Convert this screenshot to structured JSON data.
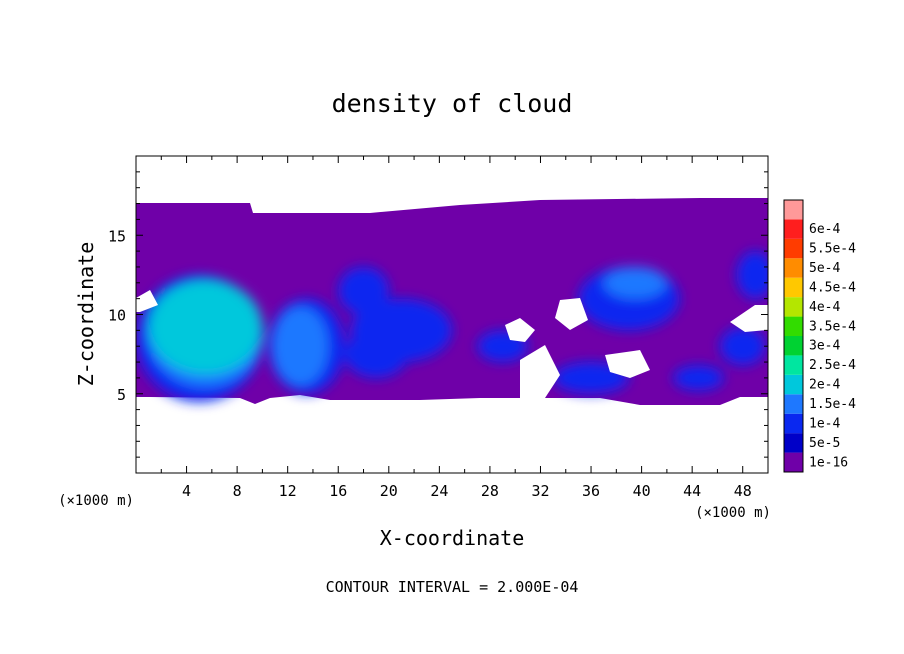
{
  "chart_data": {
    "type": "heatmap",
    "title": "density of cloud",
    "xlabel": "X-coordinate",
    "ylabel": "Z-coordinate",
    "x_unit": "(×1000 m)",
    "xlim": [
      0,
      50
    ],
    "ylim": [
      0,
      20
    ],
    "x_ticks": [
      "4",
      "8",
      "12",
      "16",
      "20",
      "24",
      "28",
      "32",
      "36",
      "40",
      "44",
      "48"
    ],
    "y_ticks": [
      "5",
      "10",
      "15"
    ],
    "colorbar": {
      "levels": [
        "1e-16",
        "5e-5",
        "1e-4",
        "1.5e-4",
        "2e-4",
        "2.5e-4",
        "3e-4",
        "3.5e-4",
        "4e-4",
        "4.5e-4",
        "5e-4",
        "5.5e-4",
        "6e-4"
      ],
      "colors": [
        "#6f00a8",
        "#0000c8",
        "#0a28f0",
        "#1e78ff",
        "#00c8dc",
        "#00e6a0",
        "#00d232",
        "#32dc00",
        "#b4e600",
        "#ffc800",
        "#ff8c00",
        "#ff3c00",
        "#ff1e1e",
        "#ff9999"
      ]
    },
    "background_field": {
      "x_range": [
        0,
        50
      ],
      "z_range": [
        5,
        17
      ],
      "level": "1e-16"
    },
    "cells": [
      {
        "x": 5.5,
        "z": 9.2,
        "rx": 4.5,
        "rz": 3.0,
        "level": 4
      },
      {
        "x": 5.5,
        "z": 8.8,
        "rx": 4.6,
        "rz": 3.4,
        "level": 3
      },
      {
        "x": 5.0,
        "z": 8.5,
        "rx": 5.0,
        "rz": 4.0,
        "level": 2
      },
      {
        "x": 13.0,
        "z": 8.0,
        "rx": 2.2,
        "rz": 2.5,
        "level": 3
      },
      {
        "x": 13.5,
        "z": 8.0,
        "rx": 3.0,
        "rz": 3.0,
        "level": 2
      },
      {
        "x": 18.0,
        "z": 11.5,
        "rx": 2.0,
        "rz": 1.5,
        "level": 2
      },
      {
        "x": 21.0,
        "z": 9.0,
        "rx": 4.0,
        "rz": 2.0,
        "level": 2
      },
      {
        "x": 19.0,
        "z": 7.5,
        "rx": 2.5,
        "rz": 1.5,
        "level": 2
      },
      {
        "x": 29.0,
        "z": 8.0,
        "rx": 2.0,
        "rz": 1.0,
        "level": 2
      },
      {
        "x": 39.0,
        "z": 11.0,
        "rx": 4.0,
        "rz": 2.0,
        "level": 2
      },
      {
        "x": 39.5,
        "z": 12.0,
        "rx": 2.5,
        "rz": 1.0,
        "level": 3
      },
      {
        "x": 36.0,
        "z": 6.0,
        "rx": 3.0,
        "rz": 1.0,
        "level": 2
      },
      {
        "x": 44.5,
        "z": 6.0,
        "rx": 2.0,
        "rz": 0.8,
        "level": 2
      },
      {
        "x": 48.0,
        "z": 8.0,
        "rx": 1.8,
        "rz": 1.2,
        "level": 2
      },
      {
        "x": 49.0,
        "z": 12.5,
        "rx": 1.5,
        "rz": 1.5,
        "level": 2
      }
    ],
    "footer": "CONTOUR INTERVAL = 2.000E-04"
  }
}
